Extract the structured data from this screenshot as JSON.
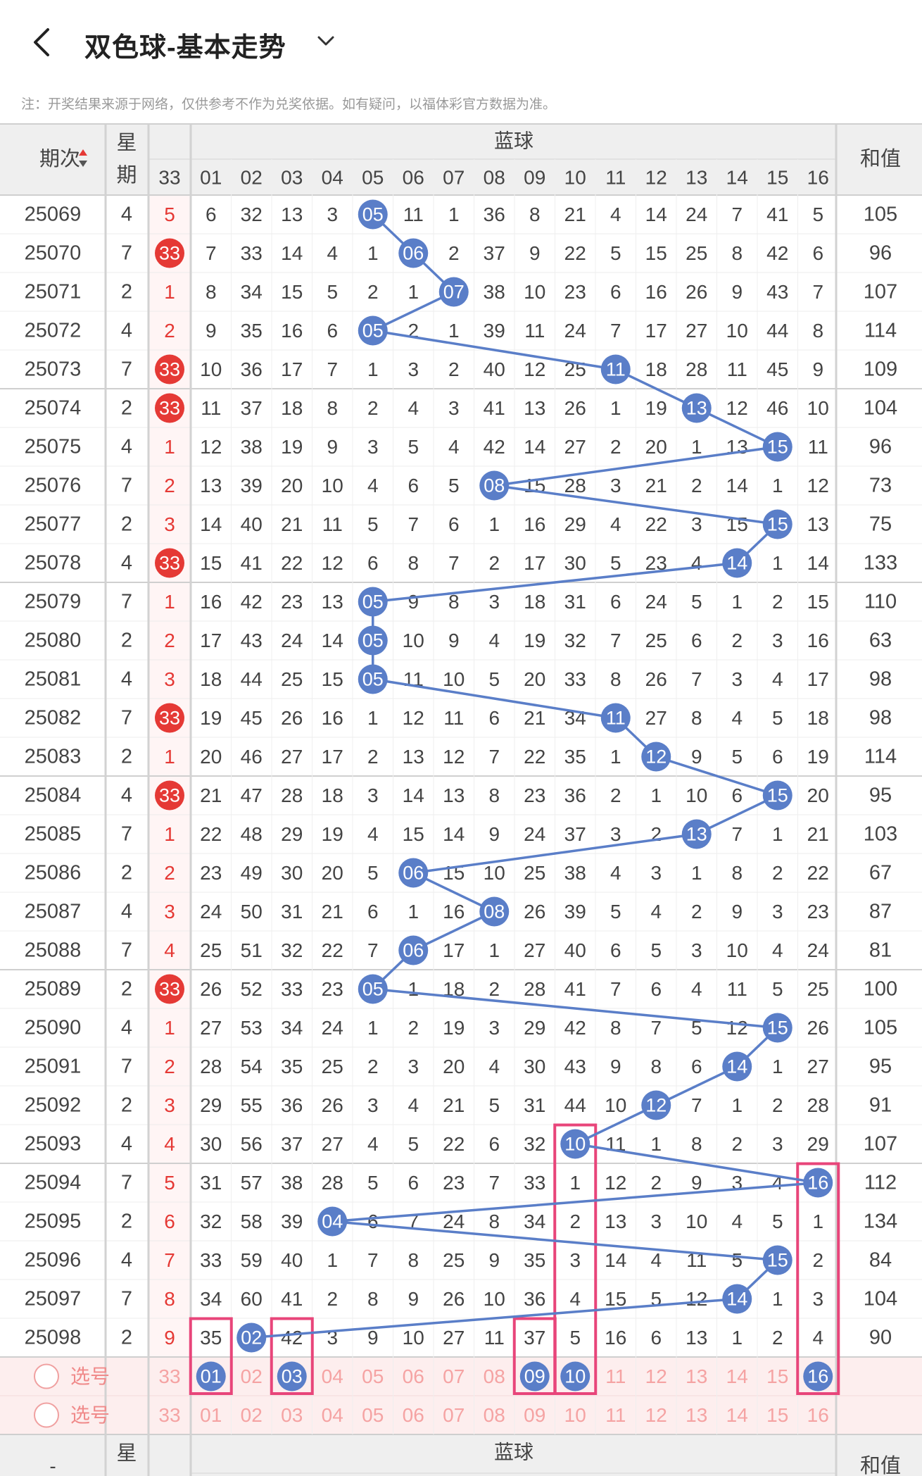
{
  "header": {
    "title": "双色球-基本走势",
    "notice": "注：开奖结果来源于网络，仅供参考不作为兑奖依据。如有疑问，以福体彩官方数据为准。"
  },
  "table": {
    "col_period": "期次",
    "col_week": "星期",
    "col_miss": "33",
    "group_blue": "蓝球",
    "col_sum": "和值",
    "blue_nums": [
      "01",
      "02",
      "03",
      "04",
      "05",
      "06",
      "07",
      "08",
      "09",
      "10",
      "11",
      "12",
      "13",
      "14",
      "15",
      "16"
    ],
    "rows": [
      {
        "p": "25069",
        "w": "4",
        "r": "5",
        "red": false,
        "blue": [
          6,
          32,
          13,
          3,
          5,
          11,
          1,
          36,
          8,
          21,
          4,
          14,
          24,
          7,
          41,
          5
        ],
        "hit": 5,
        "s": "105"
      },
      {
        "p": "25070",
        "w": "7",
        "r": "33",
        "red": true,
        "blue": [
          7,
          33,
          14,
          4,
          1,
          6,
          2,
          37,
          9,
          22,
          5,
          15,
          25,
          8,
          42,
          6
        ],
        "hit": 6,
        "s": "96"
      },
      {
        "p": "25071",
        "w": "2",
        "r": "1",
        "red": false,
        "blue": [
          8,
          34,
          15,
          5,
          2,
          1,
          7,
          38,
          10,
          23,
          6,
          16,
          26,
          9,
          43,
          7
        ],
        "hit": 7,
        "s": "107"
      },
      {
        "p": "25072",
        "w": "4",
        "r": "2",
        "red": false,
        "blue": [
          9,
          35,
          16,
          6,
          5,
          2,
          1,
          39,
          11,
          24,
          7,
          17,
          27,
          10,
          44,
          8
        ],
        "hit": 5,
        "s": "114"
      },
      {
        "p": "25073",
        "w": "7",
        "r": "33",
        "red": true,
        "blue": [
          10,
          36,
          17,
          7,
          1,
          3,
          2,
          40,
          12,
          25,
          11,
          18,
          28,
          11,
          45,
          9
        ],
        "hit": 11,
        "s": "109"
      },
      {
        "p": "25074",
        "w": "2",
        "r": "33",
        "red": true,
        "blue": [
          11,
          37,
          18,
          8,
          2,
          4,
          3,
          41,
          13,
          26,
          1,
          19,
          13,
          12,
          46,
          10
        ],
        "hit": 13,
        "s": "104"
      },
      {
        "p": "25075",
        "w": "4",
        "r": "1",
        "red": false,
        "blue": [
          12,
          38,
          19,
          9,
          3,
          5,
          4,
          42,
          14,
          27,
          2,
          20,
          1,
          13,
          15,
          11
        ],
        "hit": 15,
        "s": "96"
      },
      {
        "p": "25076",
        "w": "7",
        "r": "2",
        "red": false,
        "blue": [
          13,
          39,
          20,
          10,
          4,
          6,
          5,
          8,
          15,
          28,
          3,
          21,
          2,
          14,
          1,
          12
        ],
        "hit": 8,
        "s": "73"
      },
      {
        "p": "25077",
        "w": "2",
        "r": "3",
        "red": false,
        "blue": [
          14,
          40,
          21,
          11,
          5,
          7,
          6,
          1,
          16,
          29,
          4,
          22,
          3,
          15,
          15,
          13
        ],
        "hit": 15,
        "s": "75"
      },
      {
        "p": "25078",
        "w": "4",
        "r": "33",
        "red": true,
        "blue": [
          15,
          41,
          22,
          12,
          6,
          8,
          7,
          2,
          17,
          30,
          5,
          23,
          4,
          14,
          1,
          14
        ],
        "hit": 14,
        "s": "133"
      },
      {
        "p": "25079",
        "w": "7",
        "r": "1",
        "red": false,
        "blue": [
          16,
          42,
          23,
          13,
          5,
          9,
          8,
          3,
          18,
          31,
          6,
          24,
          5,
          1,
          2,
          15
        ],
        "hit": 5,
        "s": "110"
      },
      {
        "p": "25080",
        "w": "2",
        "r": "2",
        "red": false,
        "blue": [
          17,
          43,
          24,
          14,
          5,
          10,
          9,
          4,
          19,
          32,
          7,
          25,
          6,
          2,
          3,
          16
        ],
        "hit": 5,
        "s": "63"
      },
      {
        "p": "25081",
        "w": "4",
        "r": "3",
        "red": false,
        "blue": [
          18,
          44,
          25,
          15,
          5,
          11,
          10,
          5,
          20,
          33,
          8,
          26,
          7,
          3,
          4,
          17
        ],
        "hit": 5,
        "s": "98"
      },
      {
        "p": "25082",
        "w": "7",
        "r": "33",
        "red": true,
        "blue": [
          19,
          45,
          26,
          16,
          1,
          12,
          11,
          6,
          21,
          34,
          11,
          27,
          8,
          4,
          5,
          18
        ],
        "hit": 11,
        "s": "98"
      },
      {
        "p": "25083",
        "w": "2",
        "r": "1",
        "red": false,
        "blue": [
          20,
          46,
          27,
          17,
          2,
          13,
          12,
          7,
          22,
          35,
          1,
          12,
          9,
          5,
          6,
          19
        ],
        "hit": 12,
        "s": "114"
      },
      {
        "p": "25084",
        "w": "4",
        "r": "33",
        "red": true,
        "blue": [
          21,
          47,
          28,
          18,
          3,
          14,
          13,
          8,
          23,
          36,
          2,
          1,
          10,
          6,
          15,
          20
        ],
        "hit": 15,
        "s": "95"
      },
      {
        "p": "25085",
        "w": "7",
        "r": "1",
        "red": false,
        "blue": [
          22,
          48,
          29,
          19,
          4,
          15,
          14,
          9,
          24,
          37,
          3,
          2,
          13,
          7,
          1,
          21
        ],
        "hit": 13,
        "s": "103"
      },
      {
        "p": "25086",
        "w": "2",
        "r": "2",
        "red": false,
        "blue": [
          23,
          49,
          30,
          20,
          5,
          6,
          15,
          10,
          25,
          38,
          4,
          3,
          1,
          8,
          2,
          22
        ],
        "hit": 6,
        "s": "67"
      },
      {
        "p": "25087",
        "w": "4",
        "r": "3",
        "red": false,
        "blue": [
          24,
          50,
          31,
          21,
          6,
          1,
          16,
          8,
          26,
          39,
          5,
          4,
          2,
          9,
          3,
          23
        ],
        "hit": 8,
        "s": "87"
      },
      {
        "p": "25088",
        "w": "7",
        "r": "4",
        "red": false,
        "blue": [
          25,
          51,
          32,
          22,
          7,
          6,
          17,
          1,
          27,
          40,
          6,
          5,
          3,
          10,
          4,
          24
        ],
        "hit": 6,
        "s": "81"
      },
      {
        "p": "25089",
        "w": "2",
        "r": "33",
        "red": true,
        "blue": [
          26,
          52,
          33,
          23,
          5,
          1,
          18,
          2,
          28,
          41,
          7,
          6,
          4,
          11,
          5,
          25
        ],
        "hit": 5,
        "s": "100"
      },
      {
        "p": "25090",
        "w": "4",
        "r": "1",
        "red": false,
        "blue": [
          27,
          53,
          34,
          24,
          1,
          2,
          19,
          3,
          29,
          42,
          8,
          7,
          5,
          12,
          15,
          26
        ],
        "hit": 15,
        "s": "105"
      },
      {
        "p": "25091",
        "w": "7",
        "r": "2",
        "red": false,
        "blue": [
          28,
          54,
          35,
          25,
          2,
          3,
          20,
          4,
          30,
          43,
          9,
          8,
          6,
          14,
          1,
          27
        ],
        "hit": 14,
        "s": "95"
      },
      {
        "p": "25092",
        "w": "2",
        "r": "3",
        "red": false,
        "blue": [
          29,
          55,
          36,
          26,
          3,
          4,
          21,
          5,
          31,
          44,
          10,
          12,
          7,
          1,
          2,
          28
        ],
        "hit": 12,
        "s": "91"
      },
      {
        "p": "25093",
        "w": "4",
        "r": "4",
        "red": false,
        "blue": [
          30,
          56,
          37,
          27,
          4,
          5,
          22,
          6,
          32,
          10,
          11,
          1,
          8,
          2,
          3,
          29
        ],
        "hit": 10,
        "s": "107"
      },
      {
        "p": "25094",
        "w": "7",
        "r": "5",
        "red": false,
        "blue": [
          31,
          57,
          38,
          28,
          5,
          6,
          23,
          7,
          33,
          1,
          12,
          2,
          9,
          3,
          4,
          16
        ],
        "hit": 16,
        "s": "112"
      },
      {
        "p": "25095",
        "w": "2",
        "r": "6",
        "red": false,
        "blue": [
          32,
          58,
          39,
          4,
          6,
          7,
          24,
          8,
          34,
          2,
          13,
          3,
          10,
          4,
          5,
          1
        ],
        "hit": 4,
        "s": "134"
      },
      {
        "p": "25096",
        "w": "4",
        "r": "7",
        "red": false,
        "blue": [
          33,
          59,
          40,
          1,
          7,
          8,
          25,
          9,
          35,
          3,
          14,
          4,
          11,
          5,
          15,
          2
        ],
        "hit": 15,
        "s": "84"
      },
      {
        "p": "25097",
        "w": "7",
        "r": "8",
        "red": false,
        "blue": [
          34,
          60,
          41,
          2,
          8,
          9,
          26,
          10,
          36,
          4,
          15,
          5,
          12,
          14,
          1,
          3
        ],
        "hit": 14,
        "s": "104"
      },
      {
        "p": "25098",
        "w": "2",
        "r": "9",
        "red": false,
        "blue": [
          35,
          2,
          42,
          3,
          9,
          10,
          27,
          11,
          37,
          5,
          16,
          6,
          13,
          1,
          2,
          4
        ],
        "hit": 2,
        "s": "90"
      }
    ],
    "select_label": "选号",
    "select_miss": "33",
    "select1_picked": [
      1,
      3,
      9,
      10,
      16
    ],
    "highlight_cols": [
      1,
      3,
      9,
      10,
      16
    ],
    "bottom_header_week": "星期",
    "bottom_header_blue": "蓝球",
    "bottom_header_sum": "和值",
    "bottom_header_period": "-"
  },
  "colors": {
    "blue_ball": "#5a7ec8",
    "red_ball": "#e53935",
    "red_text": "#e53935",
    "pink_box": "#e8457a",
    "header_bg": "#efefef",
    "select_bg": "#fdeeee"
  }
}
